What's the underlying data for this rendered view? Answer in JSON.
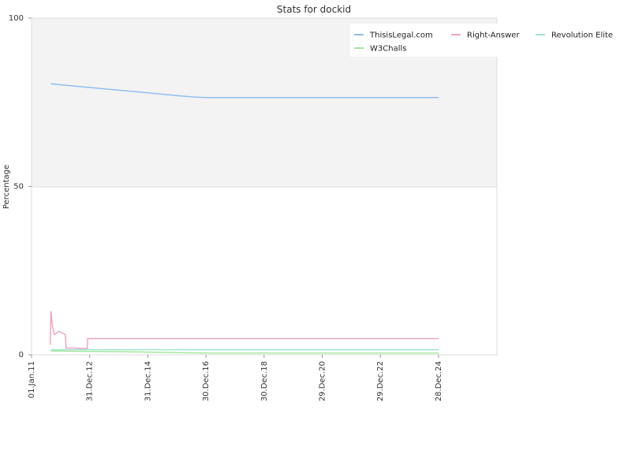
{
  "chart_data": {
    "type": "line",
    "title": "Stats for dockid",
    "ylabel": "Percentage",
    "xlabel": "",
    "ylim": [
      0,
      100
    ],
    "y_ticks": [
      "0",
      "50",
      "100"
    ],
    "x_ticks": [
      "01.Jan.11",
      "31.Dec.12",
      "31.Dec.14",
      "30.Dec.16",
      "30.Dec.18",
      "29.Dec.20",
      "29.Dec.22",
      "28.Dec.24"
    ],
    "grid": "horizontal",
    "legend_position": "top-right",
    "colors": {
      "ThisisLegal.com": "#8fbff0",
      "Right-Answer": "#f0a6c3",
      "Revolution Elite": "#9ee6cc",
      "W3Challs": "#a6e6a0",
      "upper_band": "#f3f3f3",
      "gridline": "#dddddd"
    },
    "series": [
      {
        "name": "ThisisLegal.com",
        "points": [
          [
            "01.Sep.11",
            80.5
          ],
          [
            "01.Jan.12",
            80.2
          ],
          [
            "01.Jan.13",
            79.4
          ],
          [
            "01.Jan.14",
            78.6
          ],
          [
            "01.Jan.15",
            77.8
          ],
          [
            "01.Jan.16",
            77.0
          ],
          [
            "01.Jul.16",
            76.6
          ],
          [
            "01.Jan.17",
            76.4
          ],
          [
            "01.Jan.19",
            76.4
          ],
          [
            "01.Jan.21",
            76.4
          ],
          [
            "01.Jan.23",
            76.4
          ],
          [
            "01.Jan.25",
            76.4
          ]
        ]
      },
      {
        "name": "Right-Answer",
        "points": [
          [
            "25.Aug.11",
            3.0
          ],
          [
            "01.Sep.11",
            13.0
          ],
          [
            "10.Sep.11",
            11.0
          ],
          [
            "20.Sep.11",
            8.5
          ],
          [
            "15.Oct.11",
            6.0
          ],
          [
            "15.Nov.11",
            6.5
          ],
          [
            "15.Dec.11",
            7.0
          ],
          [
            "15.Jan.12",
            6.5
          ],
          [
            "01.Mar.12",
            6.0
          ],
          [
            "10.Mar.12",
            2.0
          ],
          [
            "01.Jul.12",
            2.0
          ],
          [
            "01.Dec.12",
            1.8
          ],
          [
            "05.Dec.12",
            4.8
          ],
          [
            "01.Jan.13",
            4.8
          ],
          [
            "01.Jan.17",
            4.8
          ],
          [
            "01.Jan.21",
            4.8
          ],
          [
            "01.Jan.25",
            4.8
          ]
        ]
      },
      {
        "name": "Revolution Elite",
        "points": [
          [
            "01.Sep.11",
            1.5
          ],
          [
            "01.Jan.13",
            1.5
          ],
          [
            "01.Jan.17",
            1.5
          ],
          [
            "01.Jan.21",
            1.5
          ],
          [
            "01.Jan.25",
            1.5
          ]
        ]
      },
      {
        "name": "W3Challs",
        "points": [
          [
            "01.Sep.11",
            1.1
          ],
          [
            "01.Jan.13",
            1.0
          ],
          [
            "01.Jan.15",
            0.8
          ],
          [
            "01.Jan.17",
            0.5
          ],
          [
            "01.Jan.21",
            0.5
          ],
          [
            "01.Jan.25",
            0.5
          ]
        ]
      }
    ]
  }
}
